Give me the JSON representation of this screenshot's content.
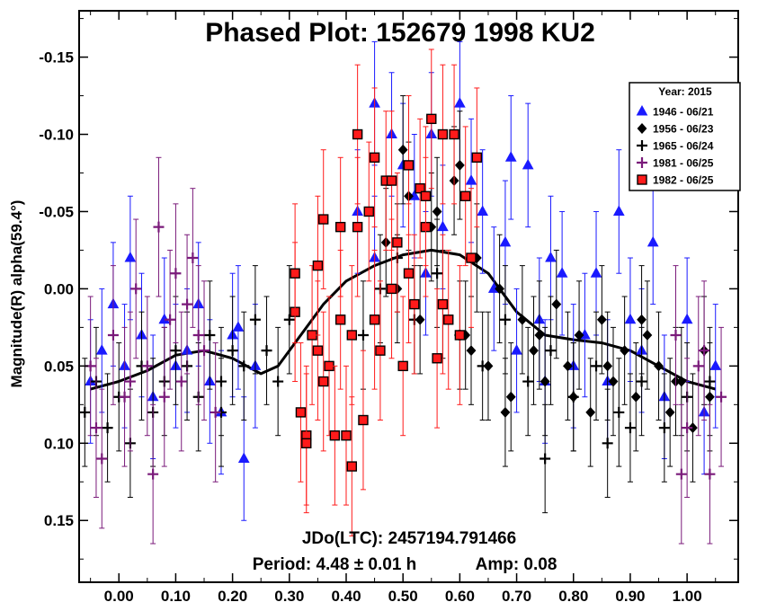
{
  "chart_data": {
    "type": "scatter",
    "title": "Phased Plot: 152679 1998 KU2",
    "xlabel": "",
    "ylabel": "Magnitude(R) alpha(59.4°)",
    "xlim": [
      -0.07,
      1.09
    ],
    "ylim": [
      0.19,
      -0.18
    ],
    "y_inverted": true,
    "grid": false,
    "x_ticks": [
      0.0,
      0.1,
      0.2,
      0.3,
      0.4,
      0.5,
      0.6,
      0.7,
      0.8,
      0.9,
      1.0
    ],
    "x_tick_labels": [
      "0.00",
      "0.10",
      "0.20",
      "0.30",
      "0.40",
      "0.50",
      "0.60",
      "0.70",
      "0.80",
      "0.90",
      "1.00"
    ],
    "y_ticks": [
      -0.15,
      -0.1,
      -0.05,
      0.0,
      0.05,
      0.1,
      0.15
    ],
    "y_tick_labels": [
      "-0.15",
      "-0.10",
      "-0.05",
      "0.00",
      "0.05",
      "0.10",
      "0.15"
    ],
    "legend": {
      "title": "Year: 2015",
      "placement": "top-right",
      "entries": [
        {
          "label": "1946 - 06/21",
          "marker": "triangle",
          "color": "#1a1aff"
        },
        {
          "label": "1956 - 06/23",
          "marker": "diamond",
          "color": "#000000"
        },
        {
          "label": "1965 - 06/24",
          "marker": "plus",
          "color": "#000000"
        },
        {
          "label": "1981 - 06/25",
          "marker": "plus",
          "color": "#7a1a7a"
        },
        {
          "label": "1982 - 06/25",
          "marker": "square",
          "color": "#ff1a1a"
        }
      ]
    },
    "annotations": {
      "jdo": "JDo(LTC): 2457194.791466",
      "period": "Period: 4.48 ± 0.01 h",
      "amp": "Amp: 0.08"
    },
    "fit_curve": {
      "x": [
        -0.05,
        0.0,
        0.05,
        0.1,
        0.15,
        0.2,
        0.25,
        0.28,
        0.3,
        0.33,
        0.36,
        0.4,
        0.45,
        0.5,
        0.55,
        0.6,
        0.65,
        0.7,
        0.75,
        0.8,
        0.85,
        0.9,
        0.95,
        1.0,
        1.05
      ],
      "y": [
        0.065,
        0.06,
        0.053,
        0.043,
        0.04,
        0.045,
        0.055,
        0.05,
        0.04,
        0.025,
        0.01,
        -0.005,
        -0.015,
        -0.022,
        -0.025,
        -0.022,
        -0.01,
        0.015,
        0.03,
        0.033,
        0.035,
        0.04,
        0.05,
        0.06,
        0.065
      ]
    },
    "series": [
      {
        "name": "1946 - 06/21",
        "marker": "triangle",
        "color": "#1a1aff",
        "error": 0.04,
        "x": [
          -0.05,
          -0.03,
          -0.01,
          0.01,
          0.02,
          0.04,
          0.06,
          0.08,
          0.1,
          0.12,
          0.14,
          0.16,
          0.18,
          0.2,
          0.22,
          0.24,
          0.42,
          0.45,
          0.48,
          0.5,
          0.52,
          0.55,
          0.57,
          0.6,
          0.62,
          0.64,
          0.66,
          0.68,
          0.7,
          0.72,
          0.74,
          0.76,
          0.78,
          0.8,
          0.82,
          0.84,
          0.86,
          0.88,
          0.9,
          0.92,
          0.94,
          0.96,
          1.0,
          1.03,
          1.05,
          0.69,
          0.21,
          0.54,
          0.75,
          0.45
        ],
        "y": [
          0.06,
          0.04,
          0.01,
          0.05,
          -0.02,
          0.03,
          0.07,
          0.02,
          0.05,
          0.04,
          0.01,
          0.06,
          0.08,
          0.03,
          0.11,
          0.05,
          -0.05,
          -0.12,
          -0.1,
          -0.08,
          -0.06,
          -0.1,
          -0.04,
          -0.12,
          -0.07,
          -0.05,
          0.0,
          -0.03,
          0.04,
          -0.08,
          0.02,
          -0.02,
          -0.01,
          0.05,
          0.03,
          -0.01,
          0.06,
          -0.05,
          0.02,
          0.04,
          -0.03,
          0.07,
          0.02,
          0.08,
          0.05,
          -0.085,
          0.025,
          -0.01,
          0.06,
          -0.02
        ]
      },
      {
        "name": "1956 - 06/23",
        "marker": "diamond",
        "color": "#000000",
        "error": 0.035,
        "x": [
          0.47,
          0.49,
          0.51,
          0.53,
          0.55,
          0.57,
          0.59,
          0.61,
          0.63,
          0.65,
          0.67,
          0.69,
          0.71,
          0.73,
          0.75,
          0.77,
          0.79,
          0.81,
          0.83,
          0.85,
          0.87,
          0.89,
          0.91,
          0.93,
          0.95,
          0.97,
          0.99,
          1.01,
          1.03,
          0.5,
          0.56,
          0.62,
          0.68,
          0.74,
          0.8,
          0.86,
          0.92,
          0.98,
          1.04,
          0.6
        ],
        "y": [
          -0.03,
          0.0,
          -0.06,
          0.02,
          -0.04,
          0.01,
          -0.07,
          0.03,
          -0.02,
          0.05,
          0.0,
          0.07,
          0.02,
          0.04,
          0.06,
          0.01,
          0.05,
          0.03,
          0.08,
          0.02,
          0.06,
          0.04,
          0.07,
          0.03,
          0.05,
          0.08,
          0.06,
          0.09,
          0.04,
          -0.09,
          -0.05,
          0.04,
          0.08,
          0.03,
          0.07,
          0.05,
          0.02,
          0.06,
          0.07,
          -0.08
        ]
      },
      {
        "name": "1965 - 06/24",
        "marker": "plus",
        "color": "#000000",
        "error": 0.035,
        "x": [
          -0.06,
          -0.04,
          -0.02,
          0.0,
          0.02,
          0.04,
          0.06,
          0.08,
          0.1,
          0.12,
          0.14,
          0.16,
          0.18,
          0.2,
          0.22,
          0.24,
          0.26,
          0.28,
          0.43,
          0.46,
          0.49,
          0.52,
          0.56,
          0.6,
          0.64,
          0.68,
          0.72,
          0.76,
          0.8,
          0.84,
          0.88,
          0.92,
          0.96,
          1.0,
          1.04,
          0.86,
          0.9,
          0.75,
          0.3,
          0.18
        ],
        "y": [
          0.08,
          0.06,
          0.09,
          0.07,
          0.1,
          0.05,
          0.08,
          0.06,
          0.04,
          0.05,
          0.07,
          0.03,
          0.06,
          0.04,
          0.05,
          0.02,
          0.04,
          0.06,
          0.03,
          0.0,
          -0.02,
          0.02,
          -0.01,
          0.03,
          0.05,
          0.02,
          0.06,
          0.04,
          0.07,
          0.05,
          0.08,
          0.06,
          0.09,
          0.07,
          0.06,
          0.1,
          0.09,
          0.11,
          0.02,
          0.08
        ]
      },
      {
        "name": "1981 - 06/25",
        "marker": "plus",
        "color": "#7a1a7a",
        "error": 0.045,
        "x": [
          -0.05,
          -0.03,
          -0.01,
          0.01,
          0.03,
          0.05,
          0.07,
          0.09,
          0.11,
          0.13,
          0.15,
          0.17,
          0.98,
          1.0,
          1.02,
          1.04,
          1.06,
          0.06,
          0.1,
          0.14,
          -0.04,
          0.02,
          0.99,
          1.03,
          0.12,
          0.08
        ],
        "y": [
          0.05,
          0.11,
          0.03,
          0.07,
          0.0,
          0.05,
          -0.04,
          0.02,
          0.06,
          -0.02,
          0.04,
          0.08,
          0.03,
          0.09,
          0.05,
          0.12,
          0.07,
          0.12,
          -0.01,
          0.03,
          0.09,
          0.06,
          0.12,
          0.04,
          0.01,
          0.07
        ]
      },
      {
        "name": "1982 - 06/25",
        "marker": "square",
        "color": "#ff1a1a",
        "error": 0.045,
        "x": [
          0.31,
          0.32,
          0.33,
          0.34,
          0.35,
          0.36,
          0.37,
          0.38,
          0.39,
          0.4,
          0.41,
          0.42,
          0.43,
          0.44,
          0.45,
          0.46,
          0.47,
          0.48,
          0.49,
          0.5,
          0.51,
          0.52,
          0.53,
          0.54,
          0.55,
          0.56,
          0.57,
          0.58,
          0.59,
          0.6,
          0.61,
          0.62,
          0.63,
          0.33,
          0.36,
          0.39,
          0.42,
          0.45,
          0.48,
          0.51,
          0.54,
          0.57,
          0.35,
          0.41,
          0.31
        ],
        "y": [
          0.015,
          0.08,
          0.095,
          0.03,
          -0.015,
          -0.045,
          0.05,
          0.095,
          0.02,
          0.095,
          0.115,
          -0.04,
          0.085,
          -0.05,
          -0.085,
          0.04,
          -0.07,
          0.0,
          -0.03,
          0.05,
          -0.08,
          0.01,
          -0.065,
          -0.04,
          -0.11,
          0.045,
          -0.1,
          0.02,
          -0.1,
          0.03,
          -0.06,
          -0.02,
          -0.085,
          0.1,
          0.06,
          -0.04,
          -0.1,
          0.02,
          -0.07,
          -0.01,
          -0.06,
          0.01,
          0.04,
          0.03,
          -0.01
        ]
      }
    ]
  }
}
